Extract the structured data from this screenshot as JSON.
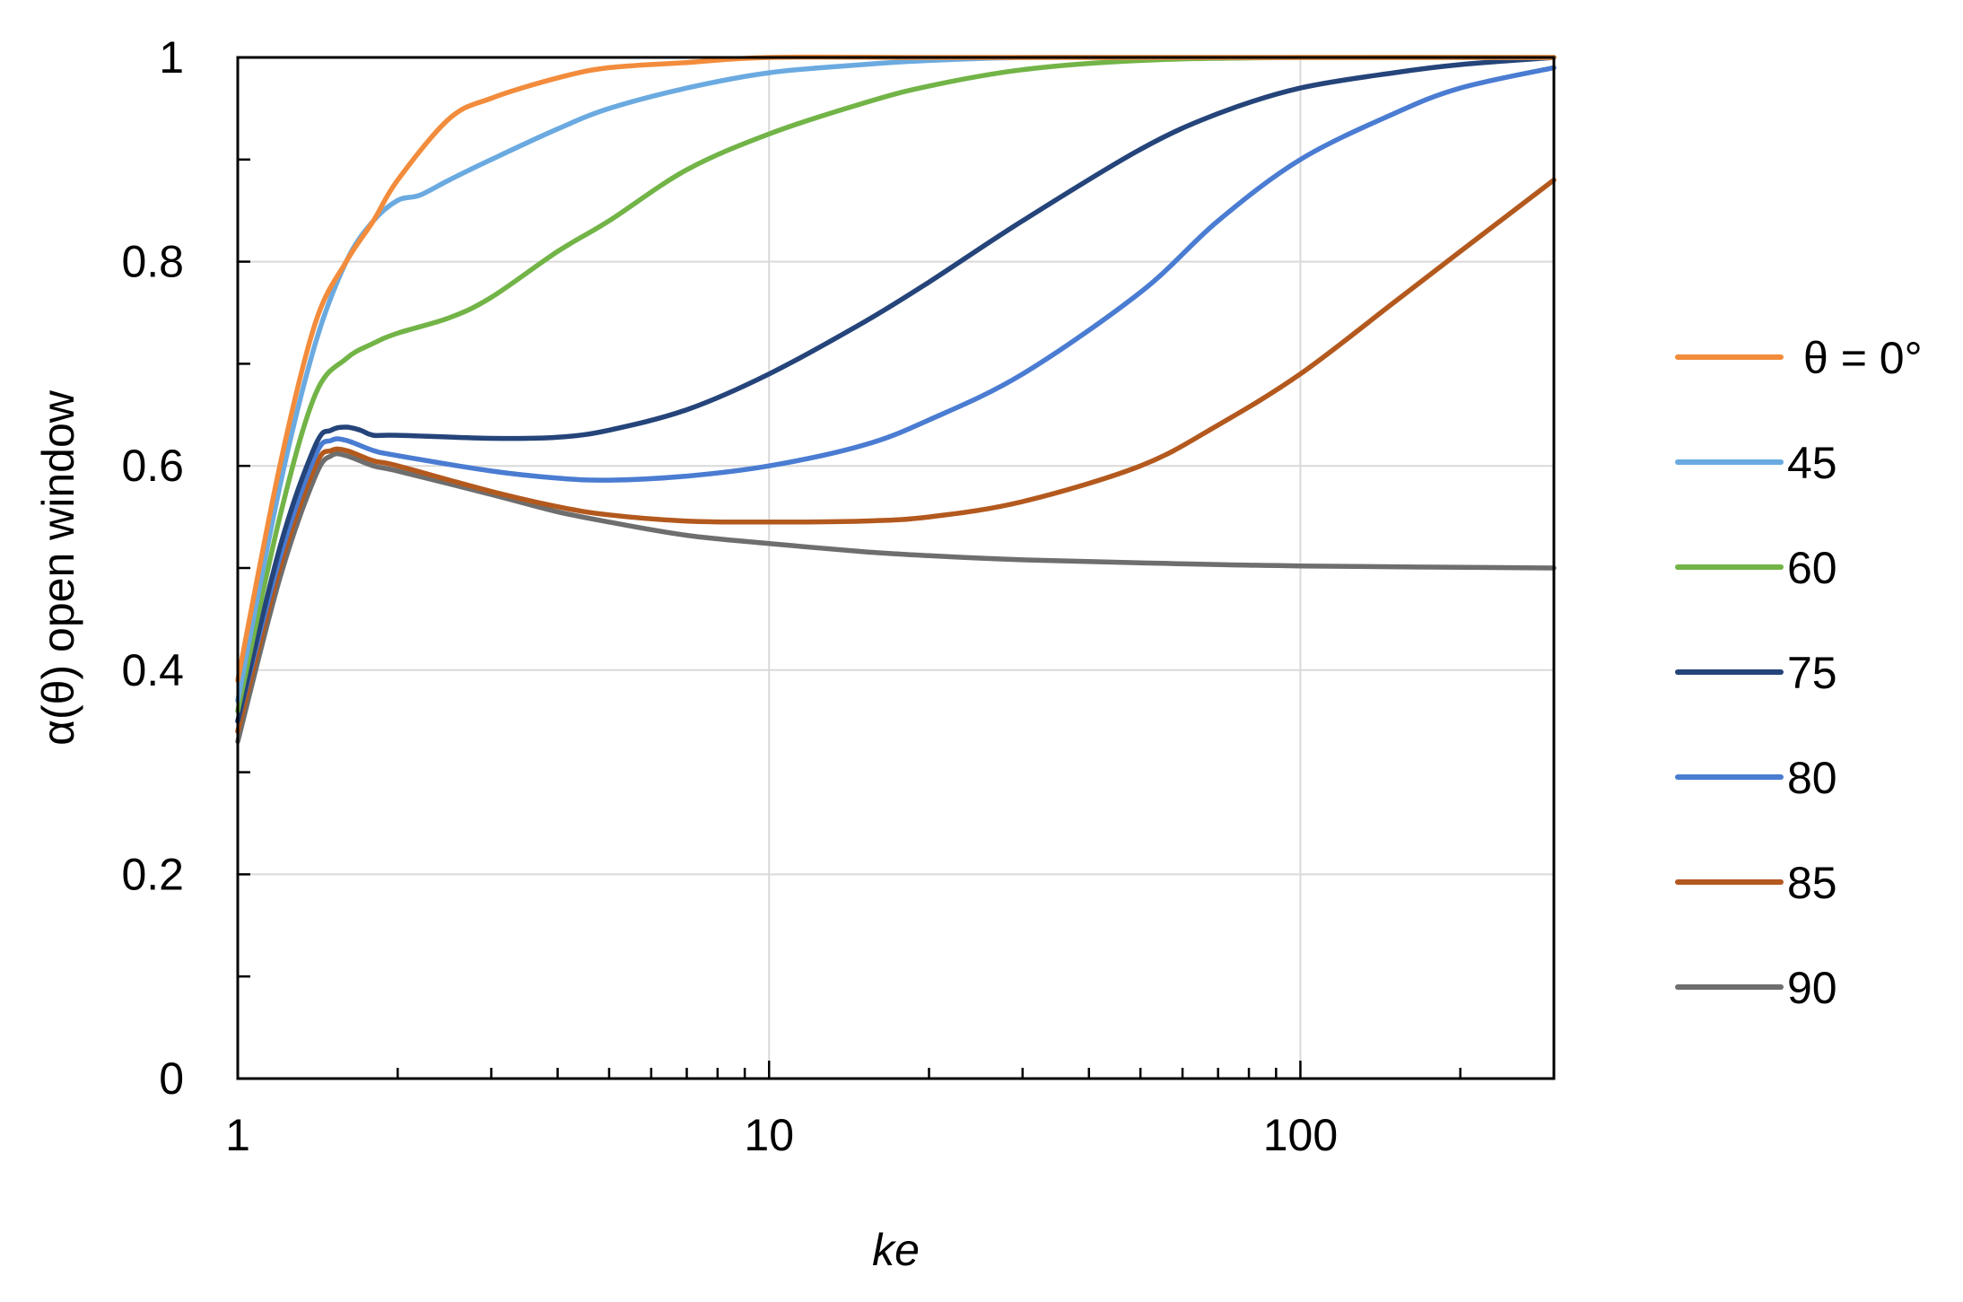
{
  "chart_data": {
    "type": "line",
    "title": "",
    "xlabel": "ke",
    "ylabel": "α(θ) open window",
    "x_scale": "log",
    "xlim": [
      1,
      300
    ],
    "ylim": [
      0,
      1
    ],
    "x_ticks": [
      {
        "value": 1,
        "label": "1"
      },
      {
        "value": 10,
        "label": "10"
      },
      {
        "value": 100,
        "label": "100"
      }
    ],
    "y_ticks": [
      {
        "value": 0,
        "label": "0"
      },
      {
        "value": 0.2,
        "label": "0.2"
      },
      {
        "value": 0.4,
        "label": "0.4"
      },
      {
        "value": 0.6,
        "label": "0.6"
      },
      {
        "value": 0.8,
        "label": "0.8"
      },
      {
        "value": 1,
        "label": "1"
      }
    ],
    "grid": true,
    "legend_position": "right",
    "series": [
      {
        "name": "θ = 0°",
        "color": "#F28C3C",
        "x": [
          1,
          1.2,
          1.4,
          1.6,
          1.8,
          2.0,
          2.5,
          3,
          4,
          5,
          7,
          10,
          20,
          50,
          100,
          300
        ],
        "y": [
          0.39,
          0.6,
          0.74,
          0.8,
          0.84,
          0.88,
          0.94,
          0.96,
          0.98,
          0.99,
          0.995,
          1.0,
          1.0,
          1.0,
          1.0,
          1.0
        ]
      },
      {
        "name": "45",
        "color": "#6AAAE0",
        "x": [
          1,
          1.2,
          1.4,
          1.6,
          1.8,
          2.0,
          2.2,
          2.5,
          3,
          4,
          5,
          7,
          10,
          15,
          20,
          30,
          50,
          100,
          300
        ],
        "y": [
          0.37,
          0.58,
          0.72,
          0.8,
          0.84,
          0.86,
          0.865,
          0.88,
          0.9,
          0.93,
          0.95,
          0.97,
          0.985,
          0.993,
          0.997,
          1.0,
          1.0,
          1.0,
          1.0
        ]
      },
      {
        "name": "60",
        "color": "#72B447",
        "x": [
          1,
          1.2,
          1.4,
          1.6,
          1.8,
          2.0,
          2.5,
          3,
          4,
          5,
          7,
          10,
          15,
          20,
          30,
          50,
          100,
          300
        ],
        "y": [
          0.36,
          0.55,
          0.67,
          0.705,
          0.72,
          0.73,
          0.745,
          0.765,
          0.81,
          0.84,
          0.89,
          0.925,
          0.955,
          0.972,
          0.988,
          0.997,
          1.0,
          1.0
        ]
      },
      {
        "name": "75",
        "color": "#24447A",
        "x": [
          1,
          1.2,
          1.4,
          1.5,
          1.6,
          1.7,
          1.8,
          2.0,
          3,
          4,
          5,
          7,
          10,
          15,
          20,
          30,
          50,
          70,
          100,
          150,
          200,
          300
        ],
        "y": [
          0.35,
          0.52,
          0.62,
          0.635,
          0.638,
          0.635,
          0.63,
          0.63,
          0.627,
          0.628,
          0.635,
          0.655,
          0.69,
          0.74,
          0.78,
          0.84,
          0.91,
          0.945,
          0.97,
          0.985,
          0.993,
          1.0
        ]
      },
      {
        "name": "80",
        "color": "#4A7CD2",
        "x": [
          1,
          1.2,
          1.4,
          1.5,
          1.6,
          1.8,
          2.0,
          3,
          4,
          5,
          7,
          10,
          15,
          20,
          30,
          50,
          70,
          100,
          150,
          200,
          300
        ],
        "y": [
          0.35,
          0.51,
          0.61,
          0.625,
          0.625,
          0.615,
          0.61,
          0.595,
          0.588,
          0.586,
          0.59,
          0.6,
          0.62,
          0.645,
          0.69,
          0.77,
          0.84,
          0.9,
          0.945,
          0.97,
          0.99
        ]
      },
      {
        "name": "85",
        "color": "#B3591E",
        "x": [
          1,
          1.2,
          1.4,
          1.5,
          1.6,
          1.8,
          2.0,
          3,
          4,
          5,
          7,
          10,
          15,
          20,
          30,
          50,
          70,
          100,
          150,
          200,
          300
        ],
        "y": [
          0.34,
          0.5,
          0.6,
          0.615,
          0.615,
          0.605,
          0.6,
          0.575,
          0.56,
          0.552,
          0.546,
          0.545,
          0.546,
          0.55,
          0.565,
          0.6,
          0.64,
          0.69,
          0.76,
          0.81,
          0.88
        ]
      },
      {
        "name": "90",
        "color": "#6E6E6E",
        "x": [
          1,
          1.2,
          1.4,
          1.5,
          1.6,
          1.8,
          2.0,
          3,
          4,
          5,
          7,
          10,
          15,
          20,
          30,
          50,
          100,
          300
        ],
        "y": [
          0.33,
          0.49,
          0.59,
          0.61,
          0.61,
          0.6,
          0.595,
          0.572,
          0.555,
          0.545,
          0.532,
          0.524,
          0.516,
          0.512,
          0.508,
          0.505,
          0.502,
          0.5
        ]
      }
    ]
  }
}
